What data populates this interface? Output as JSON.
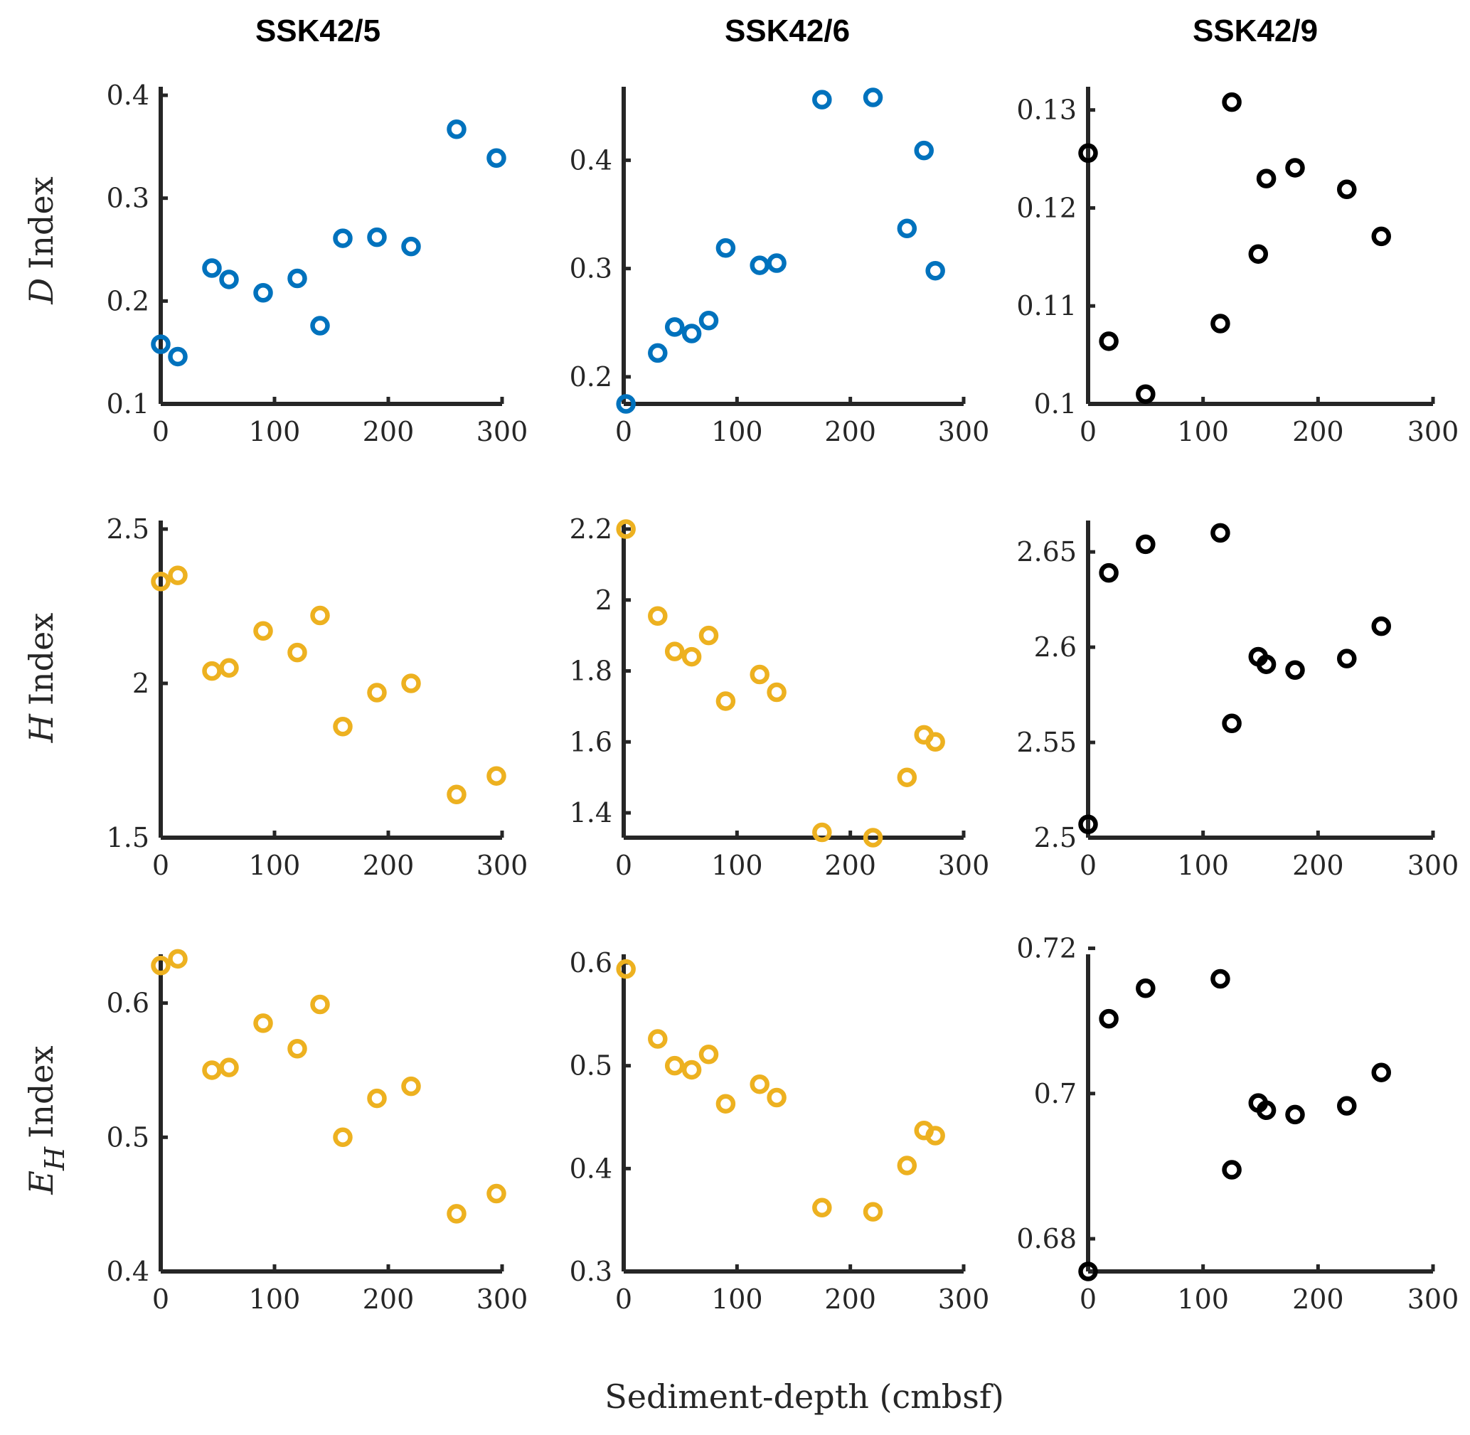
{
  "figure": {
    "xlabel": "Sediment-depth (cmbsf)",
    "column_titles": [
      "SSK42/5",
      "SSK42/6",
      "SSK42/9"
    ],
    "row_labels": [
      {
        "var": "D",
        "sub": "",
        "word": "Index"
      },
      {
        "var": "H",
        "sub": "",
        "word": "Index"
      },
      {
        "var": "E",
        "sub": "H",
        "word": "Index"
      }
    ]
  },
  "colors": {
    "blue": "#0072BD",
    "gold": "#EDB120",
    "black": "#000000",
    "axis": "#262626"
  },
  "chart_data": [
    {
      "type": "scatter",
      "title": "SSK42/5",
      "xlabel": "",
      "ylabel": "D Index",
      "xlim": [
        0,
        300
      ],
      "ylim": [
        0.1,
        0.4
      ],
      "xticks": [
        0,
        100,
        200,
        300
      ],
      "xtick_labels": [
        "0",
        "100",
        "200",
        "300"
      ],
      "yticks": [
        0.1,
        0.2,
        0.3,
        0.4
      ],
      "ytick_labels": [
        "0.1",
        "0.2",
        "0.3",
        "0.4"
      ],
      "color": "blue",
      "x": [
        0,
        15,
        45,
        60,
        90,
        120,
        140,
        160,
        190,
        220,
        260,
        295
      ],
      "y": [
        0.158,
        0.146,
        0.232,
        0.221,
        0.208,
        0.222,
        0.176,
        0.261,
        0.262,
        0.253,
        0.367,
        0.339
      ]
    },
    {
      "type": "scatter",
      "title": "SSK42/6",
      "xlabel": "",
      "ylabel": "",
      "xlim": [
        0,
        300
      ],
      "ylim": [
        0.175,
        0.46
      ],
      "xticks": [
        0,
        100,
        200,
        300
      ],
      "xtick_labels": [
        "0",
        "100",
        "200",
        "300"
      ],
      "yticks": [
        0.2,
        0.3,
        0.4
      ],
      "ytick_labels": [
        "0.2",
        "0.3",
        "0.4"
      ],
      "color": "blue",
      "x": [
        2,
        30,
        45,
        60,
        75,
        90,
        120,
        135,
        175,
        220,
        250,
        265,
        275
      ],
      "y": [
        0.175,
        0.222,
        0.246,
        0.24,
        0.252,
        0.319,
        0.303,
        0.305,
        0.456,
        0.458,
        0.337,
        0.409,
        0.298
      ]
    },
    {
      "type": "scatter",
      "title": "SSK42/9",
      "xlabel": "",
      "ylabel": "",
      "xlim": [
        0,
        300
      ],
      "ylim": [
        0.1,
        0.1315
      ],
      "xticks": [
        0,
        100,
        200,
        300
      ],
      "xtick_labels": [
        "0",
        "100",
        "200",
        "300"
      ],
      "yticks": [
        0.1,
        0.11,
        0.12,
        0.13
      ],
      "ytick_labels": [
        "0.1",
        "0.11",
        "0.12",
        "0.13"
      ],
      "color": "black",
      "x": [
        0,
        18,
        50,
        115,
        125,
        148,
        155,
        180,
        225,
        255
      ],
      "y": [
        0.1256,
        0.1064,
        0.101,
        0.1082,
        0.1308,
        0.1153,
        0.123,
        0.1241,
        0.1219,
        0.1171
      ]
    },
    {
      "type": "scatter",
      "title": "",
      "xlabel": "",
      "ylabel": "H Index",
      "xlim": [
        0,
        300
      ],
      "ylim": [
        1.5,
        2.5
      ],
      "xticks": [
        0,
        100,
        200,
        300
      ],
      "xtick_labels": [
        "0",
        "100",
        "200",
        "300"
      ],
      "yticks": [
        1.5,
        2,
        2.5
      ],
      "ytick_labels": [
        "1.5",
        "2",
        "2.5"
      ],
      "color": "gold",
      "x": [
        0,
        15,
        45,
        60,
        90,
        120,
        140,
        160,
        190,
        220,
        260,
        295
      ],
      "y": [
        2.33,
        2.35,
        2.04,
        2.05,
        2.17,
        2.1,
        2.22,
        1.86,
        1.97,
        2.0,
        1.64,
        1.7
      ]
    },
    {
      "type": "scatter",
      "title": "",
      "xlabel": "",
      "ylabel": "",
      "xlim": [
        0,
        300
      ],
      "ylim": [
        1.33,
        2.2
      ],
      "xticks": [
        0,
        100,
        200,
        300
      ],
      "xtick_labels": [
        "0",
        "100",
        "200",
        "300"
      ],
      "yticks": [
        1.4,
        1.6,
        1.8,
        2,
        2.2
      ],
      "ytick_labels": [
        "1.4",
        "1.6",
        "1.8",
        "2",
        "2.2"
      ],
      "color": "gold",
      "x": [
        2,
        30,
        45,
        60,
        75,
        90,
        120,
        135,
        175,
        220,
        250,
        265,
        275
      ],
      "y": [
        2.2,
        1.955,
        1.855,
        1.84,
        1.9,
        1.715,
        1.79,
        1.74,
        1.345,
        1.33,
        1.5,
        1.62,
        1.6
      ]
    },
    {
      "type": "scatter",
      "title": "",
      "xlabel": "",
      "ylabel": "",
      "xlim": [
        0,
        300
      ],
      "ylim": [
        2.5,
        2.662
      ],
      "xticks": [
        0,
        100,
        200,
        300
      ],
      "xtick_labels": [
        "0",
        "100",
        "200",
        "300"
      ],
      "yticks": [
        2.5,
        2.55,
        2.6,
        2.65
      ],
      "ytick_labels": [
        "2.5",
        "2.55",
        "2.6",
        "2.65"
      ],
      "color": "black",
      "x": [
        0,
        18,
        50,
        115,
        125,
        148,
        155,
        180,
        225,
        255
      ],
      "y": [
        2.507,
        2.639,
        2.654,
        2.66,
        2.56,
        2.595,
        2.591,
        2.588,
        2.594,
        2.611
      ]
    },
    {
      "type": "scatter",
      "title": "",
      "xlabel": "",
      "ylabel": "E_H Index",
      "xlim": [
        0,
        300
      ],
      "ylim": [
        0.4,
        0.63
      ],
      "xticks": [
        0,
        100,
        200,
        300
      ],
      "xtick_labels": [
        "0",
        "100",
        "200",
        "300"
      ],
      "yticks": [
        0.4,
        0.5,
        0.6
      ],
      "ytick_labels": [
        "0.4",
        "0.5",
        "0.6"
      ],
      "color": "gold",
      "x": [
        0,
        15,
        45,
        60,
        90,
        120,
        140,
        160,
        190,
        220,
        260,
        295
      ],
      "y": [
        0.628,
        0.633,
        0.55,
        0.552,
        0.585,
        0.566,
        0.599,
        0.5,
        0.529,
        0.538,
        0.443,
        0.458
      ]
    },
    {
      "type": "scatter",
      "title": "",
      "xlabel": "",
      "ylabel": "",
      "xlim": [
        0,
        300
      ],
      "ylim": [
        0.3,
        0.6
      ],
      "xticks": [
        0,
        100,
        200,
        300
      ],
      "xtick_labels": [
        "0",
        "100",
        "200",
        "300"
      ],
      "yticks": [
        0.3,
        0.4,
        0.5,
        0.6
      ],
      "ytick_labels": [
        "0.3",
        "0.4",
        "0.5",
        "0.6"
      ],
      "color": "gold",
      "x": [
        2,
        30,
        45,
        60,
        75,
        90,
        120,
        135,
        175,
        220,
        250,
        265,
        275
      ],
      "y": [
        0.594,
        0.526,
        0.5,
        0.496,
        0.511,
        0.463,
        0.482,
        0.469,
        0.362,
        0.358,
        0.403,
        0.437,
        0.432
      ]
    },
    {
      "type": "scatter",
      "title": "",
      "xlabel": "",
      "ylabel": "",
      "xlim": [
        0,
        300
      ],
      "ylim": [
        0.6755,
        0.718
      ],
      "xticks": [
        0,
        100,
        200,
        300
      ],
      "xtick_labels": [
        "0",
        "100",
        "200",
        "300"
      ],
      "yticks": [
        0.68,
        0.7,
        0.72
      ],
      "ytick_labels": [
        "0.68",
        "0.7",
        "0.72"
      ],
      "color": "black",
      "x": [
        0,
        18,
        50,
        115,
        125,
        148,
        155,
        180,
        225,
        255
      ],
      "y": [
        0.6755,
        0.7103,
        0.7145,
        0.7158,
        0.6895,
        0.6987,
        0.6977,
        0.6971,
        0.6983,
        0.7029
      ]
    }
  ]
}
